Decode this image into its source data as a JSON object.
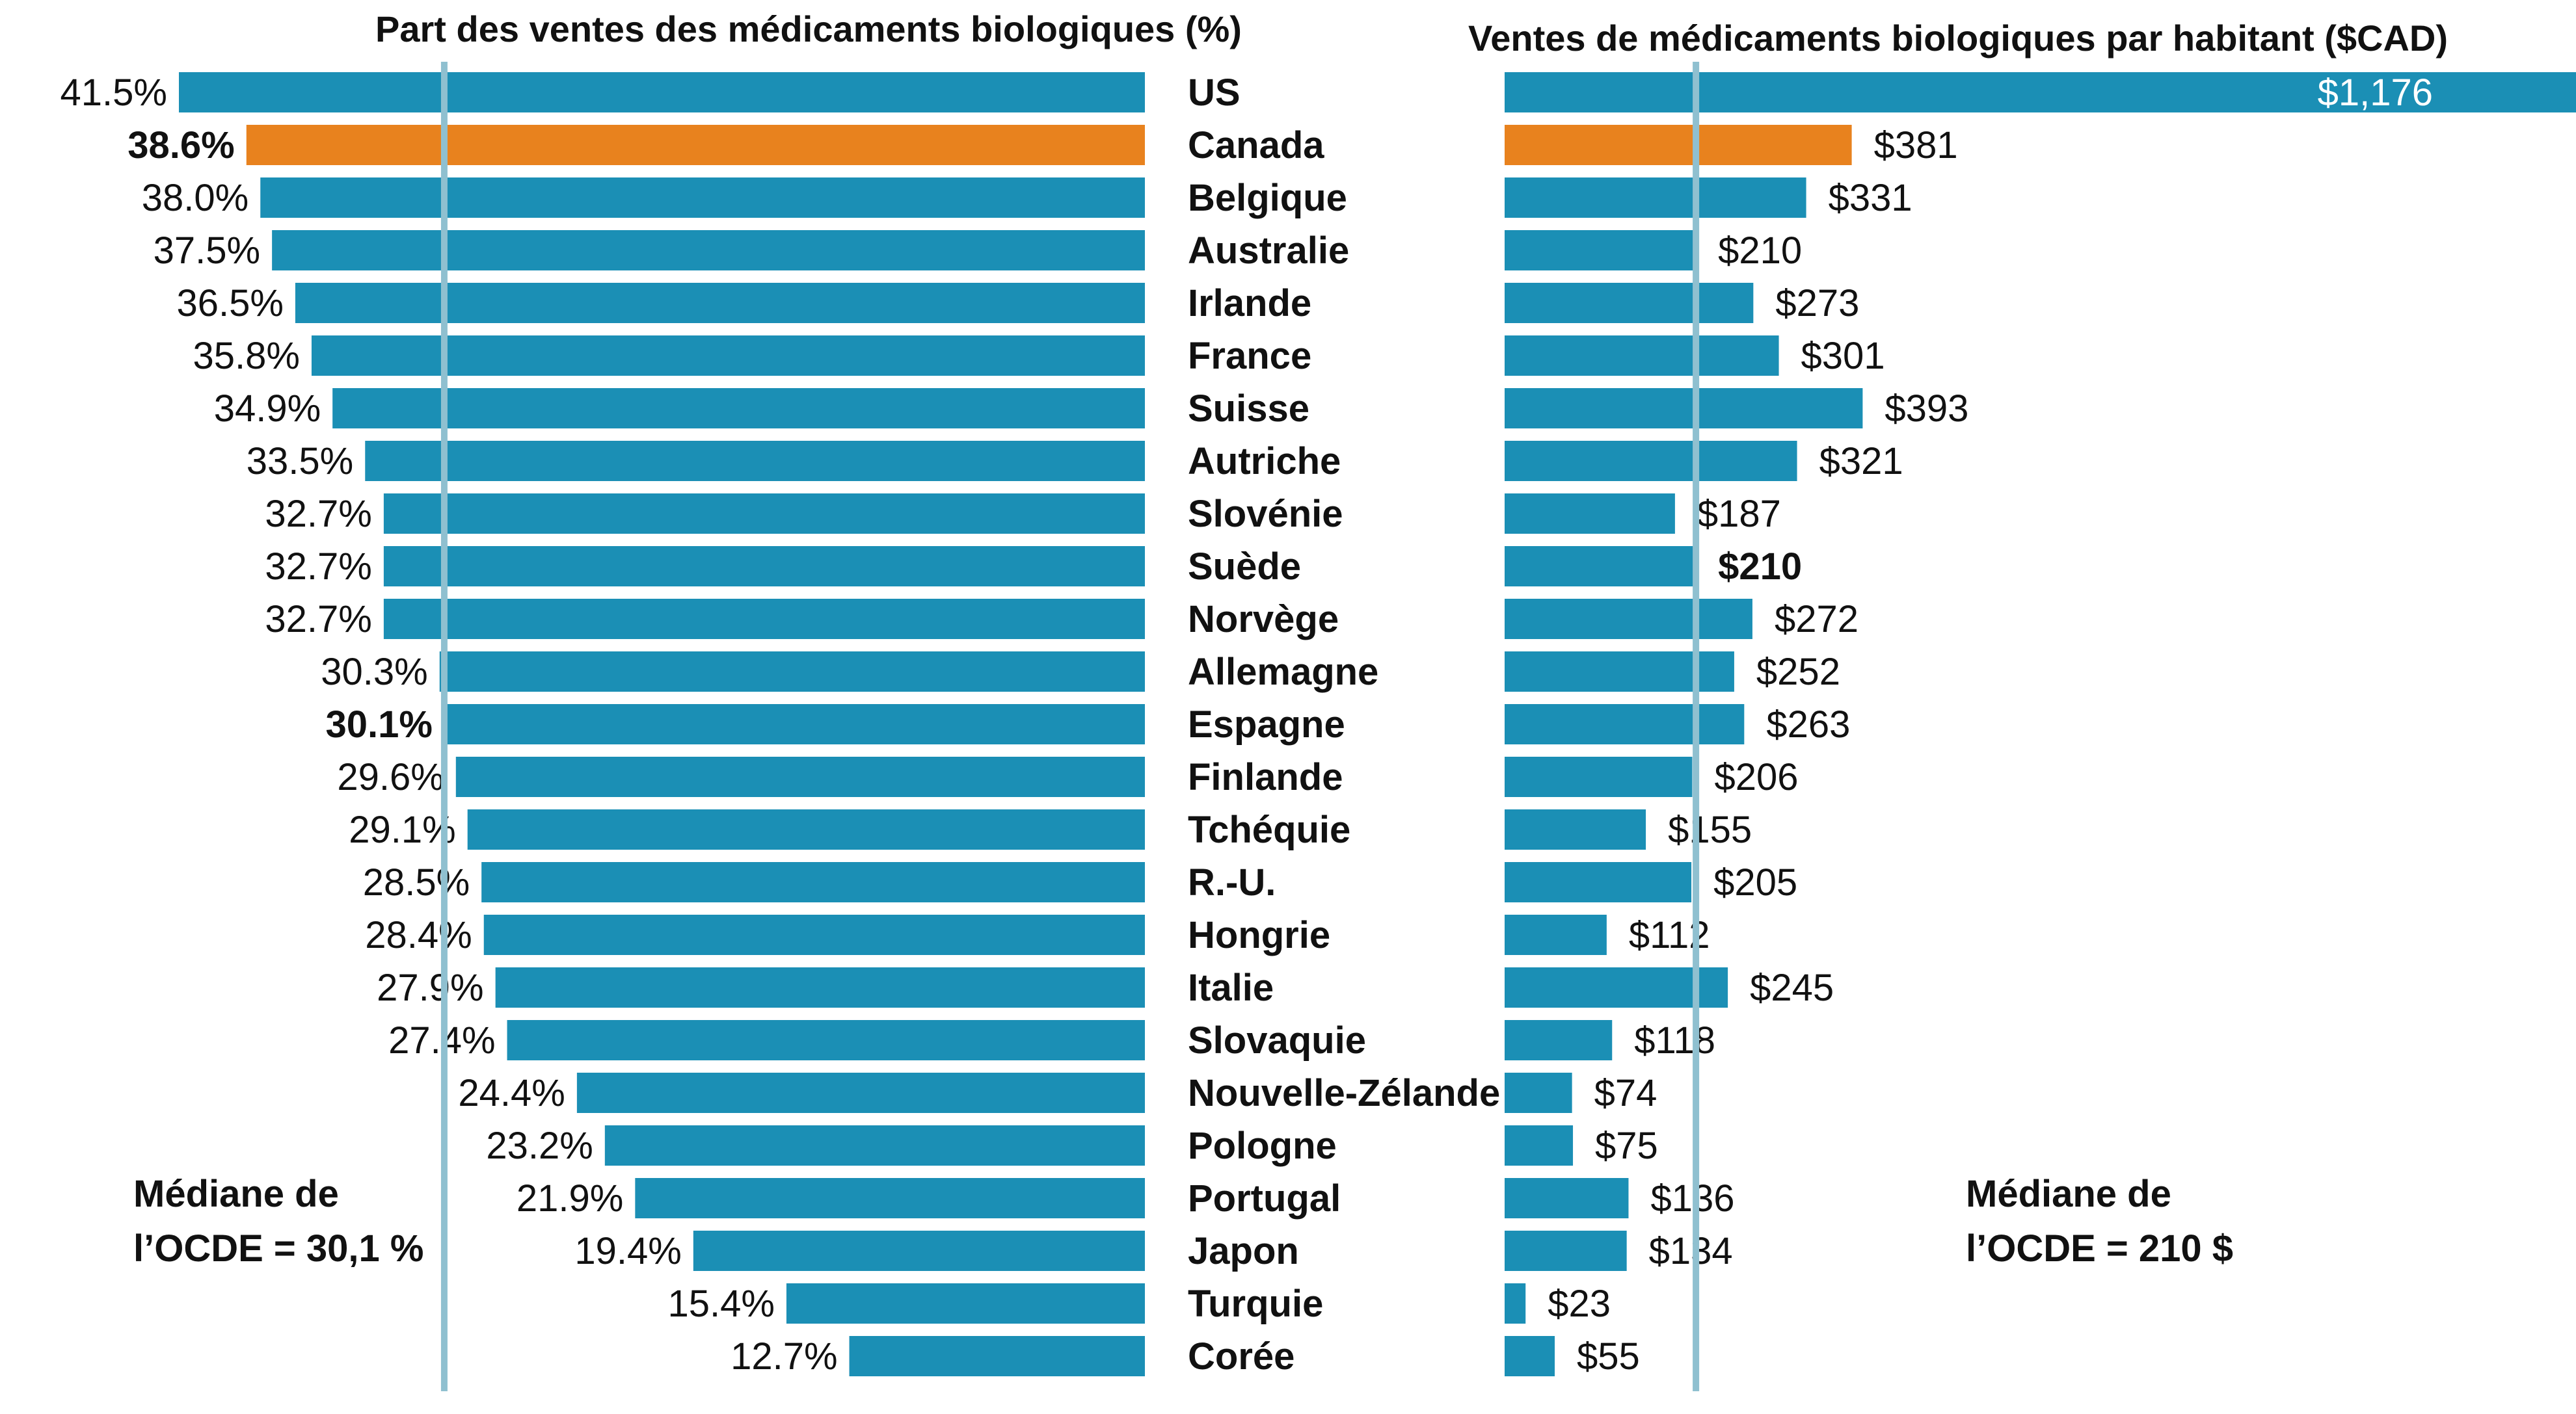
{
  "colors": {
    "bar": "#1b8fb5",
    "highlight": "#e8821e",
    "median_line": "#8fc0d0",
    "text": "#111111",
    "value_on_bar": "#ffffff"
  },
  "chart_data": [
    {
      "type": "bar",
      "orientation": "horizontal",
      "direction": "right-to-left",
      "title": "Part des ventes des médicaments biologiques (%)",
      "xlabel": "",
      "ylabel": "",
      "xlim": [
        0,
        41.5
      ],
      "grid": false,
      "categories": [
        "US",
        "Canada",
        "Belgique",
        "Australie",
        "Irlande",
        "France",
        "Suisse",
        "Autriche",
        "Slovénie",
        "Suède",
        "Norvège",
        "Allemagne",
        "Espagne",
        "Finlande",
        "Tchéquie",
        "R.-U.",
        "Hongrie",
        "Italie",
        "Slovaquie",
        "Nouvelle-Zélande",
        "Pologne",
        "Portugal",
        "Japon",
        "Turquie",
        "Corée"
      ],
      "values": [
        41.5,
        38.6,
        38.0,
        37.5,
        36.5,
        35.8,
        34.9,
        33.5,
        32.7,
        32.7,
        32.7,
        30.3,
        30.1,
        29.6,
        29.1,
        28.5,
        28.4,
        27.9,
        27.4,
        24.4,
        23.2,
        21.9,
        19.4,
        15.4,
        12.7
      ],
      "labels": [
        "41.5%",
        "38.6%",
        "38.0%",
        "37.5%",
        "36.5%",
        "35.8%",
        "34.9%",
        "33.5%",
        "32.7%",
        "32.7%",
        "32.7%",
        "30.3%",
        "30.1%",
        "29.6%",
        "29.1%",
        "28.5%",
        "28.4%",
        "27.9%",
        "27.4%",
        "24.4%",
        "23.2%",
        "21.9%",
        "19.4%",
        "15.4%",
        "12.7%"
      ],
      "highlight_index": 1,
      "bold_label_indices": [
        1,
        12
      ],
      "median": {
        "value": 30.1,
        "label_line1": "Médiane de",
        "label_line2": "l’OCDE = 30,1 %"
      }
    },
    {
      "type": "bar",
      "orientation": "horizontal",
      "direction": "left-to-right",
      "title": "Ventes de médicaments biologiques par habitant ($CAD)",
      "xlabel": "",
      "ylabel": "",
      "xlim": [
        0,
        1176
      ],
      "grid": false,
      "categories": [
        "US",
        "Canada",
        "Belgique",
        "Australie",
        "Irlande",
        "France",
        "Suisse",
        "Autriche",
        "Slovénie",
        "Suède",
        "Norvège",
        "Allemagne",
        "Espagne",
        "Finlande",
        "Tchéquie",
        "R.-U.",
        "Hongrie",
        "Italie",
        "Slovaquie",
        "Nouvelle-Zélande",
        "Pologne",
        "Portugal",
        "Japon",
        "Turquie",
        "Corée"
      ],
      "values": [
        1176,
        381,
        331,
        210,
        273,
        301,
        393,
        321,
        187,
        210,
        272,
        252,
        263,
        206,
        155,
        205,
        112,
        245,
        118,
        74,
        75,
        136,
        134,
        23,
        55
      ],
      "labels": [
        "$1,176",
        "$381",
        "$331",
        "$210",
        "$273",
        "$301",
        "$393",
        "$321",
        "$187",
        "$210",
        "$272",
        "$252",
        "$263",
        "$206",
        "$155",
        "$205",
        "$112",
        "$245",
        "$118",
        "$74",
        "$75",
        "$136",
        "$134",
        "$23",
        "$55"
      ],
      "highlight_index": 1,
      "bold_label_indices": [
        9
      ],
      "median": {
        "value": 210,
        "label_line1": "Médiane de",
        "label_line2": "l’OCDE = 210 $"
      }
    }
  ]
}
